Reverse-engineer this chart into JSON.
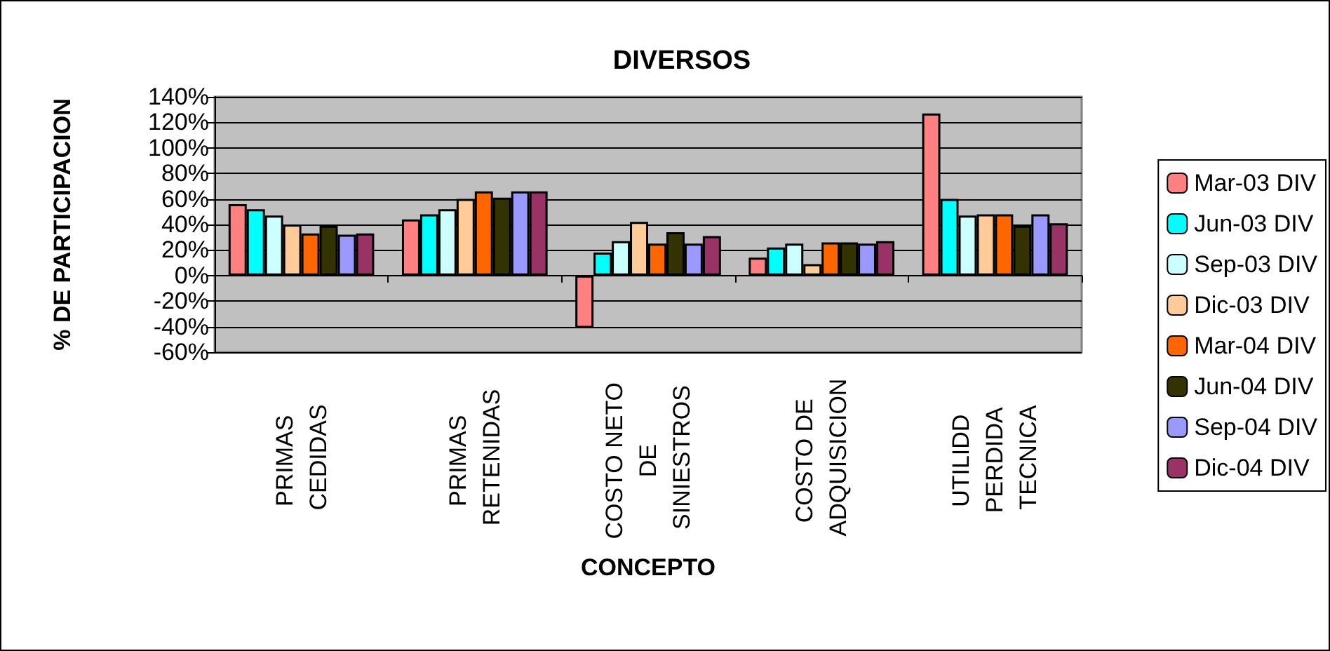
{
  "chart_data": {
    "type": "bar",
    "title": "DIVERSOS",
    "xlabel": "CONCEPTO",
    "ylabel": "% DE PARTICIPACION",
    "categories": [
      "PRIMAS CEDIDAS",
      "PRIMAS RETENIDAS",
      "COSTO NETO DE SINIESTROS",
      "COSTO DE ADQUISICION",
      "UTILIDD PERDIDA TECNICA"
    ],
    "series": [
      {
        "name": "Mar-03 DIV",
        "color": "#ff8080",
        "values": [
          56,
          44,
          -41,
          14,
          127
        ]
      },
      {
        "name": "Jun-03 DIV",
        "color": "#00ffff",
        "values": [
          52,
          48,
          18,
          22,
          60
        ]
      },
      {
        "name": "Sep-03 DIV",
        "color": "#ccffff",
        "values": [
          47,
          52,
          27,
          25,
          47
        ]
      },
      {
        "name": "Dic-03 DIV",
        "color": "#ffcc99",
        "values": [
          40,
          60,
          42,
          9,
          48
        ]
      },
      {
        "name": "Mar-04 DIV",
        "color": "#ff6600",
        "values": [
          33,
          66,
          25,
          26,
          48
        ]
      },
      {
        "name": "Jun-04 DIV",
        "color": "#333300",
        "values": [
          39,
          61,
          34,
          26,
          39
        ]
      },
      {
        "name": "Sep-04 DIV",
        "color": "#9999ff",
        "values": [
          32,
          66,
          25,
          25,
          48
        ]
      },
      {
        "name": "Dic-04 DIV",
        "color": "#993366",
        "values": [
          33,
          66,
          31,
          27,
          41
        ]
      }
    ],
    "ylim": [
      -60,
      140
    ],
    "yticks": [
      {
        "value": -60,
        "label": "-60%"
      },
      {
        "value": -40,
        "label": "-40%"
      },
      {
        "value": -20,
        "label": "-20%"
      },
      {
        "value": 0,
        "label": "0%"
      },
      {
        "value": 20,
        "label": "20%"
      },
      {
        "value": 40,
        "label": "40%"
      },
      {
        "value": 60,
        "label": "60%"
      },
      {
        "value": 80,
        "label": "80%"
      },
      {
        "value": 100,
        "label": "100%"
      },
      {
        "value": 120,
        "label": "120%"
      },
      {
        "value": 140,
        "label": "140%"
      }
    ],
    "grid": "y",
    "legend": "right"
  }
}
